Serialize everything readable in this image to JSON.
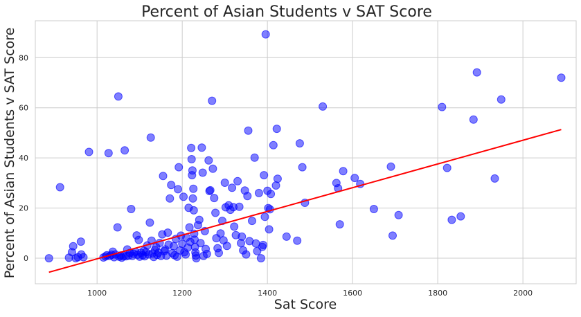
{
  "chart_data": {
    "type": "scatter",
    "title": "Percent of Asian Students v SAT Score",
    "xlabel": "Sat Score",
    "ylabel": "Percent of Asian Students v SAT Score",
    "xlim": [
      855,
      2125
    ],
    "ylim": [
      -10.2,
      94.7
    ],
    "xticks": [
      1000,
      1200,
      1400,
      1600,
      1800,
      2000
    ],
    "yticks": [
      0,
      20,
      40,
      60,
      80
    ],
    "grid": true,
    "legend": "none",
    "colors": {
      "points": "#0000ff",
      "trend": "#ff0000",
      "grid": "#cccccc",
      "frame": "#cccccc",
      "background": "#ffffff"
    },
    "series": [
      {
        "type": "scatter",
        "points": [
          [
            887,
            0.0
          ],
          [
            913,
            28.3
          ],
          [
            934,
            0.2
          ],
          [
            941,
            2.4
          ],
          [
            944,
            4.8
          ],
          [
            950,
            0.0
          ],
          [
            955,
            0.4
          ],
          [
            962,
            6.6
          ],
          [
            963,
            1.5
          ],
          [
            968,
            0.4
          ],
          [
            981,
            42.4
          ],
          [
            1015,
            0.3
          ],
          [
            1020,
            0.7
          ],
          [
            1023,
            1.2
          ],
          [
            1027,
            41.9
          ],
          [
            1030,
            0.9
          ],
          [
            1034,
            1.4
          ],
          [
            1037,
            2.6
          ],
          [
            1040,
            0.4
          ],
          [
            1043,
            1.5
          ],
          [
            1048,
            12.3
          ],
          [
            1050,
            64.5
          ],
          [
            1052,
            0.6
          ],
          [
            1055,
            1.1
          ],
          [
            1058,
            0.2
          ],
          [
            1062,
            0.8
          ],
          [
            1065,
            43.0
          ],
          [
            1068,
            0.8
          ],
          [
            1071,
            3.5
          ],
          [
            1074,
            1.0
          ],
          [
            1077,
            2.1
          ],
          [
            1080,
            19.6
          ],
          [
            1083,
            0.9
          ],
          [
            1086,
            1.8
          ],
          [
            1090,
            2.5
          ],
          [
            1093,
            9.1
          ],
          [
            1095,
            1.4
          ],
          [
            1098,
            7.3
          ],
          [
            1100,
            0.6
          ],
          [
            1103,
            2.2
          ],
          [
            1107,
            1.2
          ],
          [
            1110,
            3.0
          ],
          [
            1112,
            0.8
          ],
          [
            1115,
            2.4
          ],
          [
            1118,
            5.1
          ],
          [
            1121,
            1.5
          ],
          [
            1124,
            14.2
          ],
          [
            1126,
            48.1
          ],
          [
            1128,
            7.0
          ],
          [
            1130,
            1.9
          ],
          [
            1133,
            0.5
          ],
          [
            1136,
            3.3
          ],
          [
            1139,
            4.4
          ],
          [
            1141,
            1.3
          ],
          [
            1144,
            2.2
          ],
          [
            1147,
            6.1
          ],
          [
            1150,
            0.9
          ],
          [
            1153,
            9.5
          ],
          [
            1155,
            32.8
          ],
          [
            1158,
            2.8
          ],
          [
            1160,
            3.5
          ],
          [
            1163,
            1.0
          ],
          [
            1166,
            10.2
          ],
          [
            1168,
            5.4
          ],
          [
            1171,
            23.8
          ],
          [
            1174,
            29.2
          ],
          [
            1177,
            2.0
          ],
          [
            1180,
            4.8
          ],
          [
            1182,
            1.2
          ],
          [
            1185,
            7.7
          ],
          [
            1188,
            0.6
          ],
          [
            1190,
            27.5
          ],
          [
            1192,
            36.3
          ],
          [
            1195,
            3.1
          ],
          [
            1197,
            9.0
          ],
          [
            1200,
            5.7
          ],
          [
            1203,
            24.5
          ],
          [
            1205,
            2.4
          ],
          [
            1208,
            1.5
          ],
          [
            1210,
            8.2
          ],
          [
            1213,
            4.2
          ],
          [
            1215,
            20.1
          ],
          [
            1217,
            12.3
          ],
          [
            1219,
            6.5
          ],
          [
            1221,
            44.0
          ],
          [
            1222,
            39.5
          ],
          [
            1223,
            33.1
          ],
          [
            1224,
            35.0
          ],
          [
            1225,
            23.8
          ],
          [
            1226,
            27.7
          ],
          [
            1227,
            19.1
          ],
          [
            1228,
            9.8
          ],
          [
            1229,
            7.4
          ],
          [
            1230,
            4.5
          ],
          [
            1231,
            2.3
          ],
          [
            1232,
            1.1
          ],
          [
            1233,
            0.0
          ],
          [
            1237,
            13.2
          ],
          [
            1240,
            15.3
          ],
          [
            1243,
            6.0
          ],
          [
            1246,
            44.1
          ],
          [
            1248,
            34.1
          ],
          [
            1250,
            0.9
          ],
          [
            1253,
            10.8
          ],
          [
            1255,
            3.7
          ],
          [
            1258,
            1.7
          ],
          [
            1262,
            39.0
          ],
          [
            1264,
            26.8
          ],
          [
            1266,
            27.1
          ],
          [
            1270,
            62.8
          ],
          [
            1272,
            35.7
          ],
          [
            1275,
            24.0
          ],
          [
            1278,
            18.1
          ],
          [
            1280,
            8.0
          ],
          [
            1283,
            4.0
          ],
          [
            1286,
            2.1
          ],
          [
            1290,
            9.9
          ],
          [
            1294,
            14.9
          ],
          [
            1297,
            7.1
          ],
          [
            1300,
            30.1
          ],
          [
            1302,
            20.3
          ],
          [
            1305,
            4.9
          ],
          [
            1309,
            21.1
          ],
          [
            1313,
            19.3
          ],
          [
            1317,
            28.1
          ],
          [
            1320,
            20.4
          ],
          [
            1322,
            12.6
          ],
          [
            1326,
            9.2
          ],
          [
            1330,
            30.7
          ],
          [
            1334,
            20.5
          ],
          [
            1338,
            6.0
          ],
          [
            1340,
            8.6
          ],
          [
            1343,
            3.1
          ],
          [
            1347,
            27.0
          ],
          [
            1350,
            1.5
          ],
          [
            1353,
            24.8
          ],
          [
            1355,
            50.9
          ],
          [
            1358,
            6.8
          ],
          [
            1364,
            14.9
          ],
          [
            1370,
            40.1
          ],
          [
            1373,
            5.9
          ],
          [
            1376,
            2.8
          ],
          [
            1380,
            26.0
          ],
          [
            1385,
            0.0
          ],
          [
            1388,
            4.5
          ],
          [
            1390,
            5.3
          ],
          [
            1392,
            33.1
          ],
          [
            1394,
            16.5
          ],
          [
            1396,
            89.3
          ],
          [
            1400,
            26.9
          ],
          [
            1402,
            20.0
          ],
          [
            1404,
            11.5
          ],
          [
            1406,
            19.5
          ],
          [
            1408,
            25.6
          ],
          [
            1414,
            45.1
          ],
          [
            1420,
            29.0
          ],
          [
            1422,
            51.6
          ],
          [
            1424,
            31.7
          ],
          [
            1445,
            8.6
          ],
          [
            1470,
            7.0
          ],
          [
            1476,
            45.8
          ],
          [
            1482,
            36.3
          ],
          [
            1488,
            22.1
          ],
          [
            1530,
            60.5
          ],
          [
            1562,
            30.0
          ],
          [
            1566,
            27.9
          ],
          [
            1570,
            13.5
          ],
          [
            1578,
            34.7
          ],
          [
            1605,
            32.0
          ],
          [
            1618,
            29.6
          ],
          [
            1650,
            19.6
          ],
          [
            1690,
            36.5
          ],
          [
            1694,
            9.0
          ],
          [
            1708,
            17.2
          ],
          [
            1810,
            60.3
          ],
          [
            1822,
            36.0
          ],
          [
            1833,
            15.3
          ],
          [
            1854,
            16.7
          ],
          [
            1884,
            55.3
          ],
          [
            1892,
            74.1
          ],
          [
            1934,
            31.8
          ],
          [
            1949,
            63.3
          ],
          [
            2090,
            72.0
          ]
        ]
      },
      {
        "type": "line",
        "points": [
          [
            887,
            -5.6
          ],
          [
            2090,
            51.3
          ]
        ]
      }
    ]
  }
}
